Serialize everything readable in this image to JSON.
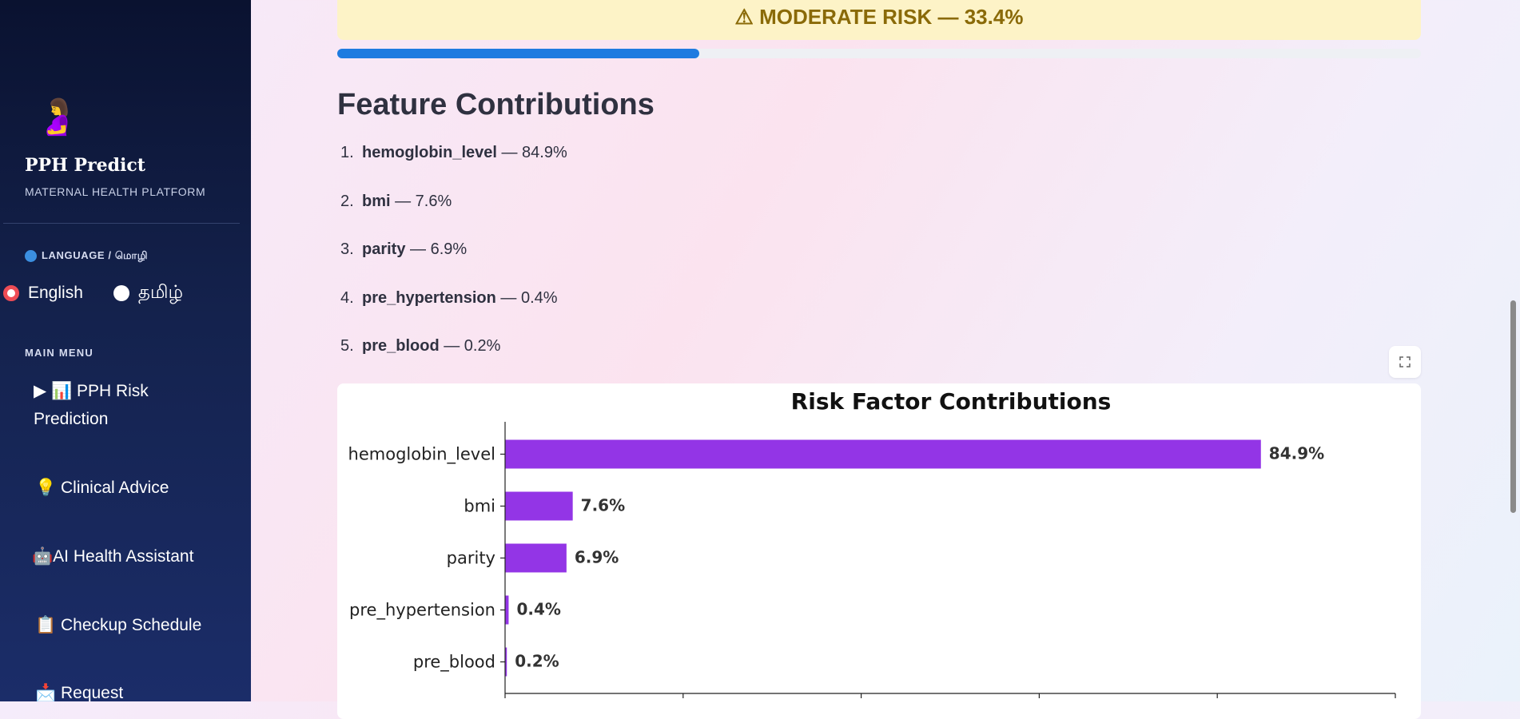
{
  "sidebar": {
    "logo_icon": "pregnant-person-emoji",
    "brand": "PPH Predict",
    "tagline": "MATERNAL HEALTH PLATFORM",
    "language_title": "LANGUAGE / மொழி",
    "languages": [
      {
        "label": "English",
        "selected": true
      },
      {
        "label": "தமிழ்",
        "selected": false
      }
    ],
    "menu_title": "MAIN MENU",
    "menu": {
      "risk_line1": "▶ 📊 PPH Risk",
      "risk_line2": "Prediction",
      "advice": "💡 Clinical Advice",
      "assistant": "🤖AI Health Assistant",
      "checkup": "📋 Checkup Schedule",
      "request": "📩 Request"
    }
  },
  "main": {
    "risk_banner": "⚠ MODERATE RISK — 33.4%",
    "risk_progress": 0.334,
    "section_title": "Feature Contributions",
    "contributions": [
      {
        "rank": "1.",
        "feature": "hemoglobin_level",
        "value": "— 84.9%"
      },
      {
        "rank": "2.",
        "feature": "bmi",
        "value": "— 7.6%"
      },
      {
        "rank": "3.",
        "feature": "parity",
        "value": "— 6.9%"
      },
      {
        "rank": "4.",
        "feature": "pre_hypertension",
        "value": "— 0.4%"
      },
      {
        "rank": "5.",
        "feature": "pre_blood",
        "value": "— 0.2%"
      }
    ]
  },
  "colors": {
    "bar": "#9335e6",
    "progress": "#1e7be0",
    "banner_bg": "#fdf3c7",
    "banner_text": "#8a6a08"
  },
  "chart_data": {
    "type": "bar",
    "orientation": "horizontal",
    "title": "Risk Factor Contributions",
    "categories": [
      "hemoglobin_level",
      "bmi",
      "parity",
      "pre_hypertension",
      "pre_blood"
    ],
    "values": [
      84.9,
      7.6,
      6.9,
      0.4,
      0.2
    ],
    "labels": [
      "84.9%",
      "7.6%",
      "6.9%",
      "0.4%",
      "0.2%"
    ],
    "xlim": [
      0,
      100
    ],
    "grid": false
  }
}
